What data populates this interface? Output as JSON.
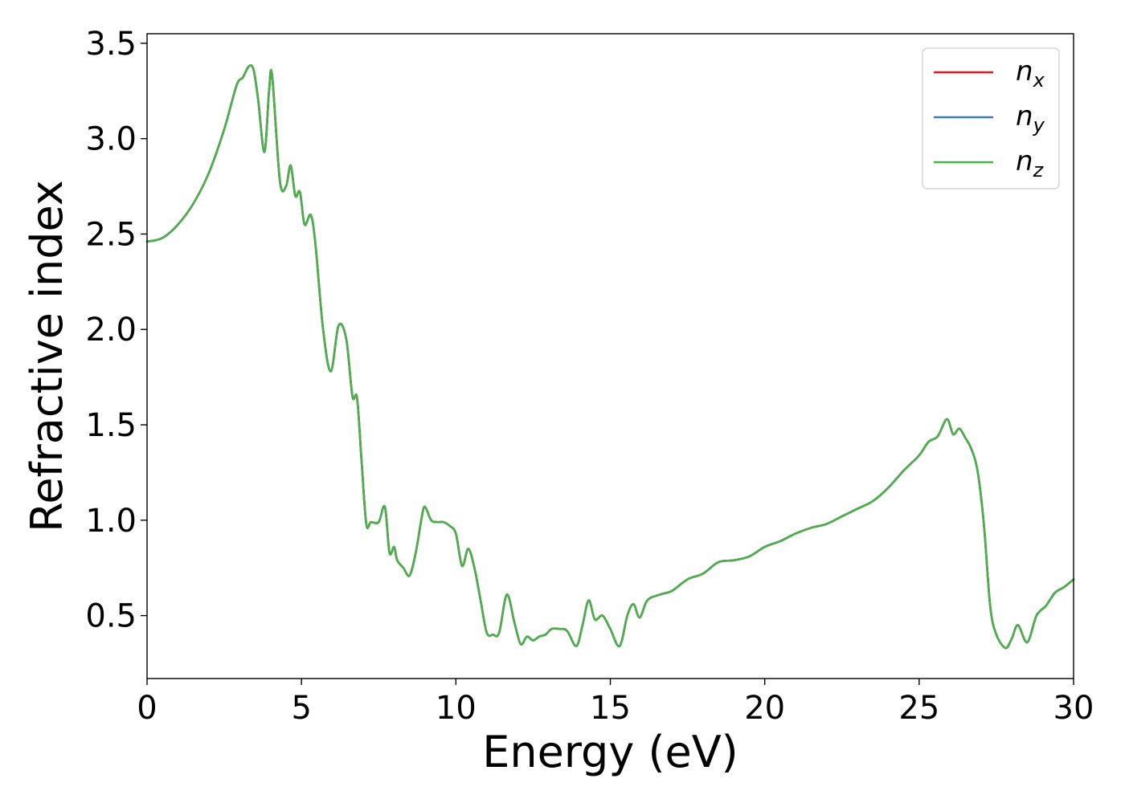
{
  "chart_data": {
    "type": "line",
    "xlabel": "Energy (eV)",
    "ylabel": "Refractive index",
    "xlim": [
      0,
      30
    ],
    "ylim": [
      0.17,
      3.55
    ],
    "xticks": [
      0,
      5,
      10,
      15,
      20,
      25,
      30
    ],
    "xtick_labels": [
      "0",
      "5",
      "10",
      "15",
      "20",
      "25",
      "30"
    ],
    "yticks": [
      0.5,
      1.0,
      1.5,
      2.0,
      2.5,
      3.0,
      3.5
    ],
    "ytick_labels": [
      "0.5",
      "1.0",
      "1.5",
      "2.0",
      "2.5",
      "3.0",
      "3.5"
    ],
    "grid": false,
    "legend_position": "top-right",
    "x": [
      0,
      0.5,
      1.0,
      1.5,
      2.0,
      2.5,
      2.9,
      3.1,
      3.3,
      3.45,
      3.6,
      3.8,
      3.95,
      4.05,
      4.3,
      4.5,
      4.65,
      4.8,
      4.95,
      5.1,
      5.3,
      5.45,
      5.7,
      5.95,
      6.2,
      6.45,
      6.65,
      6.8,
      6.95,
      7.1,
      7.25,
      7.5,
      7.7,
      7.85,
      8.0,
      8.1,
      8.3,
      8.5,
      8.7,
      8.9,
      9.0,
      9.2,
      9.4,
      9.6,
      9.8,
      10.0,
      10.2,
      10.4,
      10.6,
      10.8,
      11.0,
      11.2,
      11.4,
      11.65,
      11.9,
      12.1,
      12.3,
      12.5,
      12.7,
      12.9,
      13.1,
      13.35,
      13.6,
      13.9,
      14.1,
      14.3,
      14.5,
      14.75,
      15.0,
      15.3,
      15.55,
      15.75,
      15.95,
      16.2,
      16.6,
      17.0,
      17.5,
      18.0,
      18.5,
      19.0,
      19.5,
      20.0,
      20.5,
      21.0,
      21.5,
      22.0,
      22.5,
      23.0,
      23.5,
      24.0,
      24.5,
      25.0,
      25.3,
      25.6,
      25.9,
      26.1,
      26.3,
      26.5,
      26.7,
      26.9,
      27.1,
      27.3,
      27.5,
      27.8,
      28.0,
      28.2,
      28.5,
      28.8,
      29.1,
      29.4,
      29.7,
      30.0
    ],
    "series": [
      {
        "name": "n_x",
        "label_main": "n",
        "label_sub": "x",
        "color": "#e41a1c",
        "values": [
          2.46,
          2.48,
          2.55,
          2.66,
          2.82,
          3.05,
          3.28,
          3.32,
          3.38,
          3.36,
          3.2,
          2.93,
          3.25,
          3.33,
          2.78,
          2.75,
          2.86,
          2.7,
          2.72,
          2.55,
          2.6,
          2.45,
          2.0,
          1.78,
          2.02,
          1.95,
          1.65,
          1.64,
          1.3,
          0.98,
          0.99,
          0.99,
          1.07,
          0.83,
          0.86,
          0.79,
          0.75,
          0.71,
          0.83,
          1.02,
          1.07,
          1.0,
          0.99,
          0.99,
          0.97,
          0.93,
          0.76,
          0.85,
          0.75,
          0.58,
          0.41,
          0.4,
          0.41,
          0.61,
          0.46,
          0.35,
          0.39,
          0.37,
          0.39,
          0.4,
          0.43,
          0.43,
          0.42,
          0.34,
          0.45,
          0.58,
          0.48,
          0.5,
          0.43,
          0.34,
          0.5,
          0.56,
          0.49,
          0.58,
          0.61,
          0.63,
          0.69,
          0.72,
          0.78,
          0.79,
          0.81,
          0.86,
          0.89,
          0.93,
          0.96,
          0.98,
          1.02,
          1.06,
          1.1,
          1.17,
          1.26,
          1.34,
          1.41,
          1.44,
          1.53,
          1.45,
          1.48,
          1.43,
          1.37,
          1.25,
          0.97,
          0.55,
          0.4,
          0.33,
          0.38,
          0.45,
          0.36,
          0.5,
          0.55,
          0.62,
          0.65,
          0.69
        ]
      },
      {
        "name": "n_y",
        "label_main": "n",
        "label_sub": "y",
        "color": "#377eb8",
        "values": [
          2.46,
          2.48,
          2.55,
          2.66,
          2.82,
          3.05,
          3.28,
          3.32,
          3.38,
          3.36,
          3.2,
          2.93,
          3.25,
          3.33,
          2.78,
          2.75,
          2.86,
          2.7,
          2.72,
          2.55,
          2.6,
          2.45,
          2.0,
          1.78,
          2.02,
          1.95,
          1.65,
          1.64,
          1.3,
          0.98,
          0.99,
          0.99,
          1.07,
          0.83,
          0.86,
          0.79,
          0.75,
          0.71,
          0.83,
          1.02,
          1.07,
          1.0,
          0.99,
          0.99,
          0.97,
          0.93,
          0.76,
          0.85,
          0.75,
          0.58,
          0.41,
          0.4,
          0.41,
          0.61,
          0.46,
          0.35,
          0.39,
          0.37,
          0.39,
          0.4,
          0.43,
          0.43,
          0.42,
          0.34,
          0.45,
          0.58,
          0.48,
          0.5,
          0.43,
          0.34,
          0.5,
          0.56,
          0.49,
          0.58,
          0.61,
          0.63,
          0.69,
          0.72,
          0.78,
          0.79,
          0.81,
          0.86,
          0.89,
          0.93,
          0.96,
          0.98,
          1.02,
          1.06,
          1.1,
          1.17,
          1.26,
          1.34,
          1.41,
          1.44,
          1.53,
          1.45,
          1.48,
          1.43,
          1.37,
          1.25,
          0.97,
          0.55,
          0.4,
          0.33,
          0.38,
          0.45,
          0.36,
          0.5,
          0.55,
          0.62,
          0.65,
          0.69
        ]
      },
      {
        "name": "n_z",
        "label_main": "n",
        "label_sub": "z",
        "color": "#4daf4a",
        "values": [
          2.46,
          2.48,
          2.55,
          2.66,
          2.82,
          3.05,
          3.28,
          3.32,
          3.38,
          3.36,
          3.2,
          2.93,
          3.25,
          3.33,
          2.78,
          2.75,
          2.86,
          2.7,
          2.72,
          2.55,
          2.6,
          2.45,
          2.0,
          1.78,
          2.02,
          1.95,
          1.65,
          1.64,
          1.3,
          0.98,
          0.99,
          0.99,
          1.07,
          0.83,
          0.86,
          0.79,
          0.75,
          0.71,
          0.83,
          1.02,
          1.07,
          1.0,
          0.99,
          0.99,
          0.97,
          0.93,
          0.76,
          0.85,
          0.75,
          0.58,
          0.41,
          0.4,
          0.41,
          0.61,
          0.46,
          0.35,
          0.39,
          0.37,
          0.39,
          0.4,
          0.43,
          0.43,
          0.42,
          0.34,
          0.45,
          0.58,
          0.48,
          0.5,
          0.43,
          0.34,
          0.5,
          0.56,
          0.49,
          0.58,
          0.61,
          0.63,
          0.69,
          0.72,
          0.78,
          0.79,
          0.81,
          0.86,
          0.89,
          0.93,
          0.96,
          0.98,
          1.02,
          1.06,
          1.1,
          1.17,
          1.26,
          1.34,
          1.41,
          1.44,
          1.53,
          1.45,
          1.48,
          1.43,
          1.37,
          1.25,
          0.97,
          0.55,
          0.4,
          0.33,
          0.38,
          0.45,
          0.36,
          0.5,
          0.55,
          0.62,
          0.65,
          0.69
        ]
      }
    ]
  }
}
